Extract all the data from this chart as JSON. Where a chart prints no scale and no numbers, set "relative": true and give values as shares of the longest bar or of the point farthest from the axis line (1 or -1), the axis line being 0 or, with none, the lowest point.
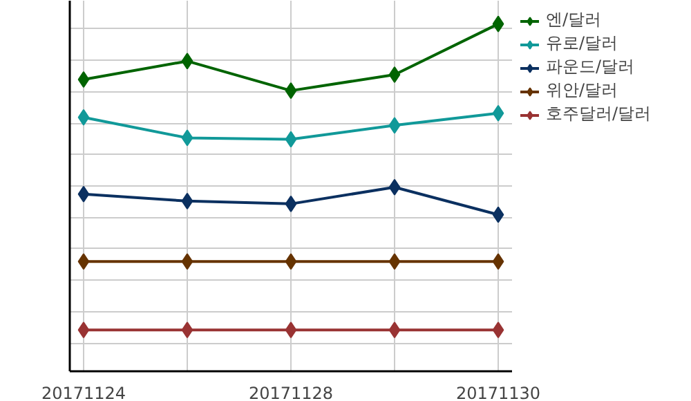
{
  "chart_data": {
    "type": "line",
    "relative": true,
    "marker": "diamond",
    "line_style": "solid",
    "grid": true,
    "legend": "right",
    "categories": [
      "20171124",
      null,
      "20171128",
      null,
      "20171130"
    ],
    "series": [
      {
        "name": "엔/달러",
        "color": "#006400",
        "values": [
          0.84,
          0.893,
          0.808,
          0.854,
          1.0
        ]
      },
      {
        "name": "유로/달러",
        "color": "#119999",
        "values": [
          0.731,
          0.672,
          0.668,
          0.708,
          0.743
        ]
      },
      {
        "name": "파운드/달러",
        "color": "#0b3060",
        "values": [
          0.51,
          0.49,
          0.482,
          0.53,
          0.451
        ]
      },
      {
        "name": "위안/달러",
        "color": "#663300",
        "values": [
          0.316,
          0.316,
          0.316,
          0.316,
          0.316
        ]
      },
      {
        "name": "호주달러/달러",
        "color": "#993333",
        "values": [
          0.119,
          0.119,
          0.119,
          0.119,
          0.119
        ]
      }
    ]
  }
}
